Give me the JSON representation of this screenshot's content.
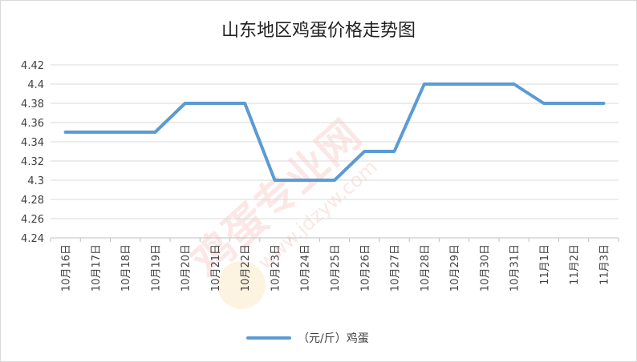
{
  "chart_data": {
    "type": "line",
    "title": "山东地区鸡蛋价格走势图",
    "categories": [
      "10月16日",
      "10月17日",
      "10月18日",
      "10月19日",
      "10月20日",
      "10月21日",
      "10月22日",
      "10月23日",
      "10月24日",
      "10月25日",
      "10月26日",
      "10月27日",
      "10月28日",
      "10月29日",
      "10月30日",
      "10月31日",
      "11月1日",
      "11月2日",
      "11月3日"
    ],
    "series": [
      {
        "name": "（元/斤）鸡蛋",
        "color": "#5b9bd5",
        "values": [
          4.35,
          4.35,
          4.35,
          4.35,
          4.38,
          4.38,
          4.38,
          4.3,
          4.3,
          4.3,
          4.33,
          4.33,
          4.4,
          4.4,
          4.4,
          4.4,
          4.38,
          4.38,
          4.38
        ]
      }
    ],
    "ylim": [
      4.24,
      4.42
    ],
    "yticks": [
      "4.24",
      "4.26",
      "4.28",
      "4.3",
      "4.32",
      "4.34",
      "4.36",
      "4.38",
      "4.4",
      "4.42"
    ],
    "xlabel": "",
    "ylabel": "",
    "grid": true,
    "legend": "bottom-center"
  },
  "watermark": {
    "text": "鸡蛋专业网",
    "url": "www.jdzyw.com",
    "color": "#e84c3d"
  }
}
